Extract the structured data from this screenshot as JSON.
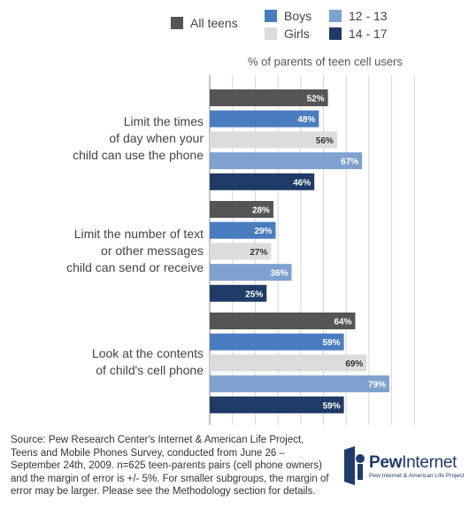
{
  "legend": {
    "items": [
      {
        "label": "All teens",
        "color": "#555555"
      },
      {
        "label": "Boys",
        "color": "#4a7cc0"
      },
      {
        "label": "Girls",
        "color": "#dcdcdc"
      },
      {
        "label": "12 - 13",
        "color": "#7fa1cf"
      },
      {
        "label": "14 - 17",
        "color": "#1f3a66"
      }
    ]
  },
  "unit_label": "% of parents of teen cell users",
  "chart_data": {
    "type": "bar",
    "orientation": "horizontal",
    "categories": [
      "Limit the times\nof day when your\nchild can use the phone",
      "Limit the number of text\nor other messages\nchild can send or receive",
      "Look at the contents\nof child's cell phone"
    ],
    "series": [
      {
        "name": "All teens",
        "values": [
          52,
          28,
          64
        ],
        "labels": [
          "52%",
          "28%",
          "64%"
        ]
      },
      {
        "name": "Boys",
        "values": [
          48,
          29,
          59
        ],
        "labels": [
          "48%",
          "29%",
          "59%"
        ]
      },
      {
        "name": "Girls",
        "values": [
          56,
          27,
          69
        ],
        "labels": [
          "56%",
          "27%",
          "69%"
        ]
      },
      {
        "name": "12 - 13",
        "values": [
          67,
          36,
          79
        ],
        "labels": [
          "67%",
          "36%",
          "79%"
        ]
      },
      {
        "name": "14 - 17",
        "values": [
          46,
          25,
          59
        ],
        "labels": [
          "46%",
          "25%",
          "59%"
        ]
      }
    ],
    "xlim": [
      0,
      100
    ],
    "grid": true,
    "legend_position": "top"
  },
  "source": "Source: Pew Research Center's Internet & American Life Project, Teens and Mobile Phones Survey, conducted from June 26 – September 24th, 2009. n=625 teen-parents pairs (cell phone owners) and the margin of error is +/- 5%. For smaller subgroups, the margin of error may be larger. Please see the Methodology section for details.",
  "logo": {
    "word_bold": "Pew",
    "word_light": "Internet",
    "subtitle": "Pew Internet & American Life Project"
  }
}
